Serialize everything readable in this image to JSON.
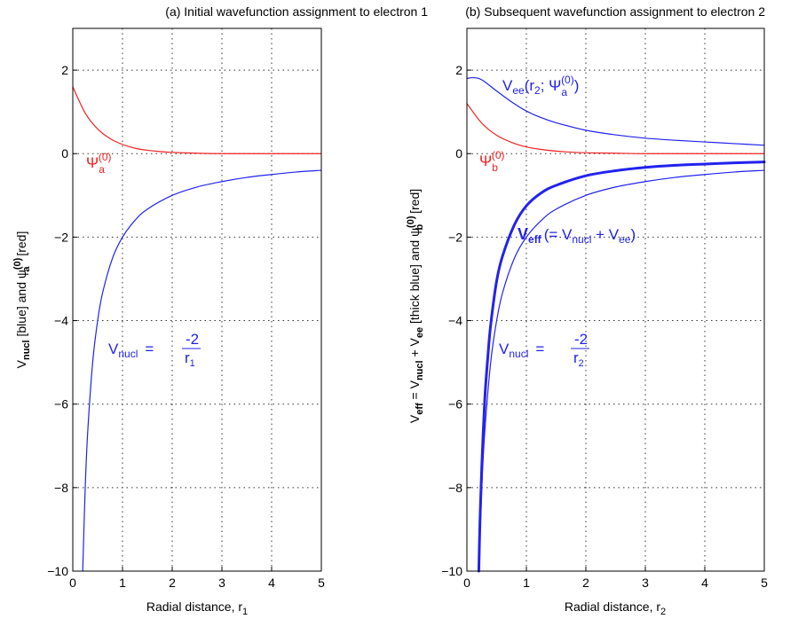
{
  "chart_data": [
    {
      "type": "line",
      "title": "(a) Initial wavefunction assignment to electron 1",
      "xlabel": "Radial distance, r",
      "xlabel_sub": "1",
      "ylabel": "V",
      "ylabel_parts": [
        "nucl",
        " [blue] and ψ",
        "(0)",
        "a",
        " [red]"
      ],
      "xlim": [
        0,
        5
      ],
      "ylim": [
        -10,
        3
      ],
      "x_ticks": [
        "0",
        "1",
        "2",
        "3",
        "4",
        "5"
      ],
      "y_ticks": [
        "2",
        "0",
        "−2",
        "−4",
        "−6",
        "−8",
        "−10"
      ],
      "series": [
        {
          "color": "#2222ee",
          "x": [
            0.2,
            0.25,
            0.3,
            0.4,
            0.5,
            0.6,
            0.8,
            1,
            1.25,
            1.5,
            2,
            2.5,
            3,
            3.5,
            4,
            4.5,
            5
          ],
          "y": [
            -10,
            -8,
            -6.67,
            -5,
            -4,
            -3.33,
            -2.5,
            -2,
            -1.6,
            -1.33,
            -1,
            -0.8,
            -0.67,
            -0.57,
            -0.5,
            -0.44,
            -0.4
          ]
        },
        {
          "color": "#ee2222",
          "x": [
            0,
            0.25,
            0.5,
            0.75,
            1,
            1.25,
            1.5,
            1.75,
            2,
            2.5,
            3,
            4,
            5
          ],
          "y": [
            1.6,
            0.97,
            0.59,
            0.36,
            0.22,
            0.13,
            0.08,
            0.05,
            0.03,
            0.01,
            0,
            0,
            0
          ]
        }
      ],
      "annotations": {
        "psi": "Ψ",
        "psi_sub": "a",
        "psi_sup": "(0)",
        "vnucl": "V",
        "vnucl_sub": "nucl",
        "eq": "=",
        "num": "-2",
        "den": "r",
        "den_sub": "1"
      }
    },
    {
      "type": "line",
      "title": "(b) Subsequent wavefunction assignment to electron 2",
      "xlabel": "Radial distance, r",
      "xlabel_sub": "2",
      "ylabel": "V",
      "ylabel_parts": [
        "eff",
        " = V",
        "nucl",
        " + V",
        "ee",
        " [thick blue] and ψ",
        "(0)",
        "b",
        " [red]"
      ],
      "xlim": [
        0,
        5
      ],
      "ylim": [
        -10,
        3
      ],
      "x_ticks": [
        "0",
        "1",
        "2",
        "3",
        "4",
        "5"
      ],
      "y_ticks": [
        "2",
        "0",
        "−2",
        "−4",
        "−6",
        "−8",
        "−10"
      ],
      "series": [
        {
          "color": "#2222ee",
          "width": 1.2,
          "x": [
            0.2,
            0.25,
            0.3,
            0.4,
            0.5,
            0.6,
            0.8,
            1,
            1.25,
            1.5,
            2,
            2.5,
            3,
            3.5,
            4,
            4.5,
            5
          ],
          "y": [
            -10,
            -8,
            -6.67,
            -5,
            -4,
            -3.33,
            -2.5,
            -2,
            -1.6,
            -1.33,
            -1,
            -0.8,
            -0.67,
            -0.57,
            -0.5,
            -0.44,
            -0.4
          ]
        },
        {
          "color": "#2222ee",
          "width": 1.2,
          "x": [
            0,
            0.1,
            0.2,
            0.3,
            0.5,
            0.75,
            1,
            1.25,
            1.5,
            2,
            2.5,
            3,
            3.5,
            4,
            4.5,
            5
          ],
          "y": [
            1.8,
            1.82,
            1.8,
            1.72,
            1.5,
            1.24,
            1.02,
            0.86,
            0.74,
            0.56,
            0.45,
            0.37,
            0.32,
            0.28,
            0.24,
            0.2
          ]
        },
        {
          "color": "#2222ee",
          "width": 3,
          "x": [
            0.2,
            0.22,
            0.25,
            0.3,
            0.35,
            0.4,
            0.5,
            0.6,
            0.8,
            1,
            1.25,
            1.5,
            2,
            2.5,
            3,
            3.5,
            4,
            4.5,
            5
          ],
          "y": [
            -10,
            -8.8,
            -7.5,
            -5.9,
            -4.9,
            -4.1,
            -3.05,
            -2.45,
            -1.7,
            -1.25,
            -0.94,
            -0.76,
            -0.53,
            -0.41,
            -0.33,
            -0.28,
            -0.25,
            -0.22,
            -0.2
          ]
        },
        {
          "color": "#ee2222",
          "width": 1.2,
          "x": [
            0,
            0.25,
            0.5,
            0.75,
            1,
            1.25,
            1.5,
            1.75,
            2,
            2.5,
            3,
            4,
            5
          ],
          "y": [
            1.2,
            0.73,
            0.44,
            0.27,
            0.16,
            0.1,
            0.06,
            0.035,
            0.02,
            0.01,
            0,
            0,
            0
          ]
        }
      ],
      "annotations": {
        "vee": "V",
        "vee_sub": "ee",
        "vee_args": "(r",
        "vee_args_sub": "2",
        "vee_sep": "; Ψ",
        "vee_psi_sub": "a",
        "vee_psi_sup": "(0)",
        "vee_close": ")",
        "psi": "Ψ",
        "psi_sub": "b",
        "psi_sup": "(0)",
        "veff": "V",
        "veff_sub": "eff",
        "veff_rest": "(= V",
        "veff_nucl": "nucl",
        "veff_plus": " + V",
        "veff_ee": "ee",
        "veff_close": ")",
        "vnucl": "V",
        "vnucl_sub": "nucl",
        "eq": "=",
        "num": "-2",
        "den": "r",
        "den_sub": "2"
      }
    }
  ]
}
